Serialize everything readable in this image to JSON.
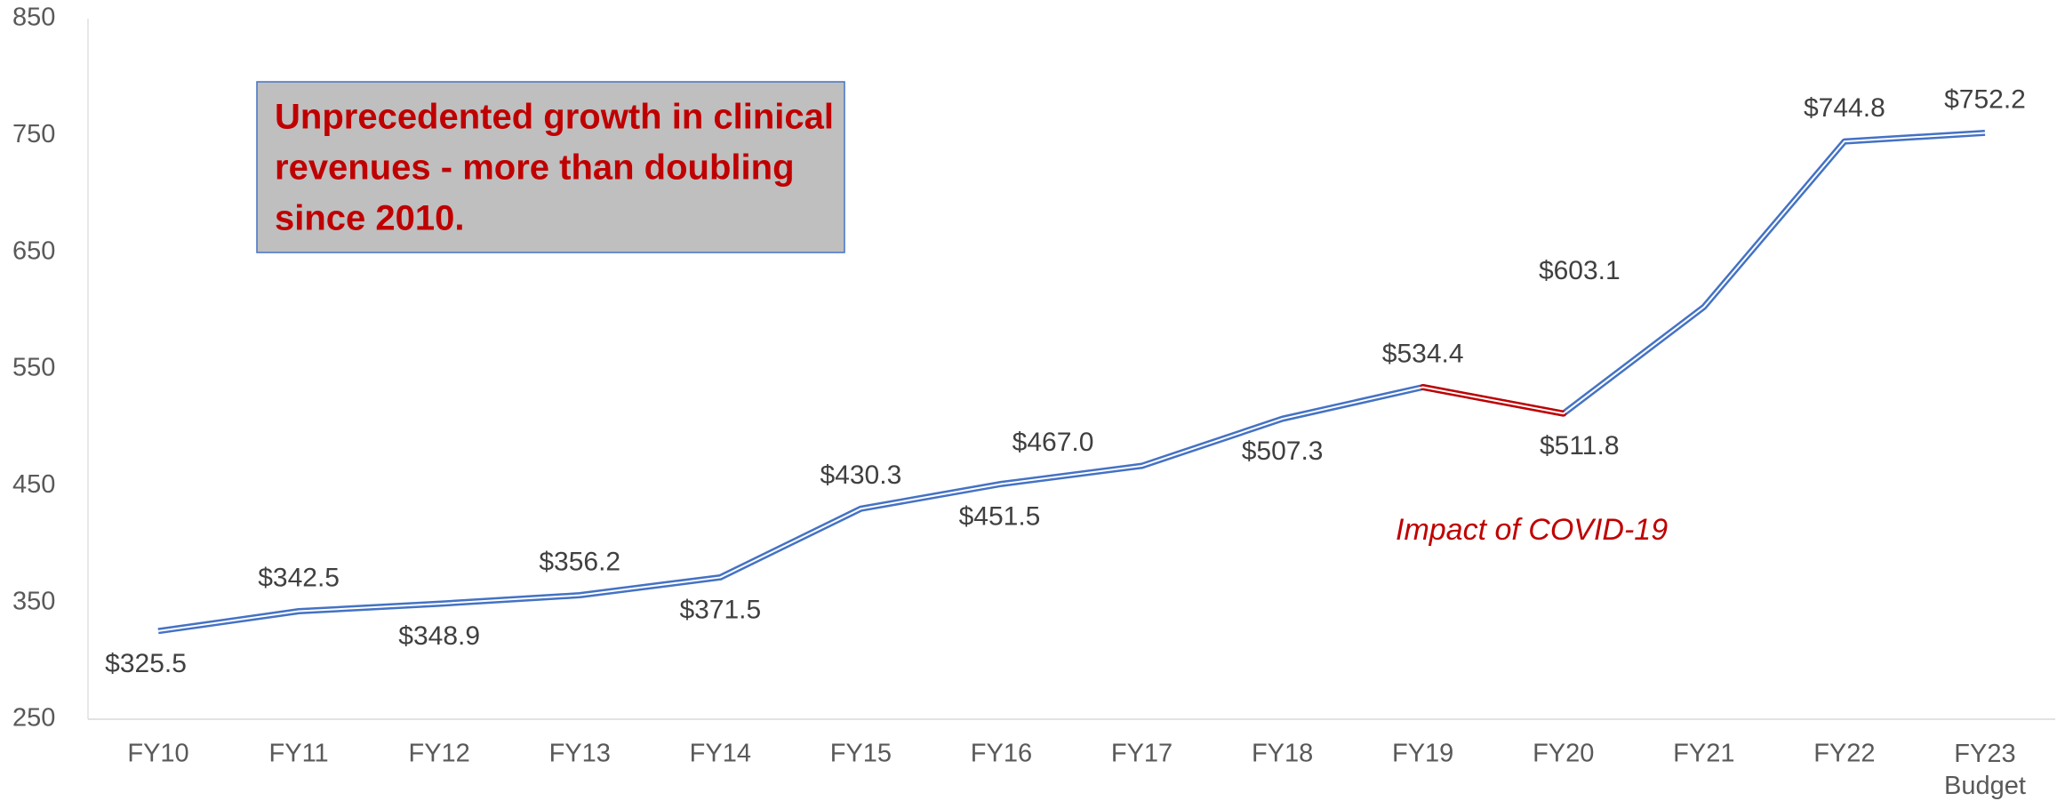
{
  "chart_data": {
    "type": "line",
    "categories": [
      "FY10",
      "FY11",
      "FY12",
      "FY13",
      "FY14",
      "FY15",
      "FY16",
      "FY17",
      "FY18",
      "FY19",
      "FY20",
      "FY21",
      "FY22",
      "FY23 Budget"
    ],
    "series": [
      {
        "name": "Clinical revenues",
        "color": "#4472c4",
        "values": [
          325.5,
          342.5,
          348.9,
          356.2,
          371.5,
          430.3,
          451.5,
          467.0,
          507.3,
          534.4,
          511.8,
          603.1,
          744.8,
          752.2
        ],
        "value_labels": [
          "$325.5",
          "$342.5",
          "$348.9",
          "$356.2",
          "$371.5",
          "$430.3",
          "$451.5",
          "$467.0",
          "$507.3",
          "$534.4",
          "$511.8",
          "$603.1",
          "$744.8",
          "$752.2"
        ]
      }
    ],
    "highlight_from": "FY19",
    "highlight_to": "FY20",
    "highlight_color": "#c00000",
    "ylim": [
      250,
      850
    ],
    "yticks": [
      250,
      350,
      450,
      550,
      650,
      750,
      850
    ],
    "grid": false,
    "annotations": {
      "box": [
        "Unprecedented growth in clinical",
        "revenues - more than doubling",
        "since 2010."
      ],
      "covid": "Impact of COVID-19"
    }
  }
}
